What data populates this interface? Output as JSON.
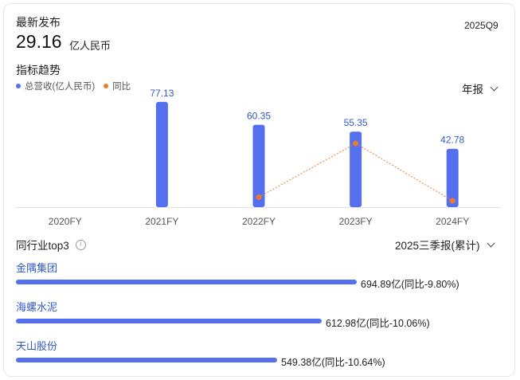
{
  "latest": {
    "label": "最新发布",
    "value": "29.16",
    "unit": "亿人民币",
    "period": "2025Q9"
  },
  "trend": {
    "title": "指标趋势",
    "legend_revenue": "总营收(亿人民币)",
    "legend_yoy": "同比",
    "period_select": "年报",
    "colors": {
      "revenue": "#5470ee",
      "yoy": "#f07a2c"
    }
  },
  "chart_data": {
    "type": "bar",
    "categories": [
      "2020FY",
      "2021FY",
      "2022FY",
      "2023FY",
      "2024FY"
    ],
    "series": [
      {
        "name": "总营收(亿人民币)",
        "type": "bar",
        "values": [
          null,
          77.13,
          60.35,
          55.35,
          42.78
        ]
      },
      {
        "name": "同比",
        "type": "line",
        "values": [
          null,
          null,
          -21.8,
          -8.3,
          -22.7
        ]
      }
    ],
    "ylim": [
      0,
      80
    ],
    "legend": "top-left"
  },
  "peers": {
    "title": "同行业top3",
    "period_select": "2025三季报(累计)",
    "items": [
      {
        "name": "金隅集团",
        "value": "694.89亿(同比-9.80%)",
        "share": 0.714
      },
      {
        "name": "海螺水泥",
        "value": "612.98亿(同比-10.06%)",
        "share": 0.64
      },
      {
        "name": "天山股份",
        "value": "549.38亿(同比-10.64%)",
        "share": 0.547
      }
    ]
  }
}
